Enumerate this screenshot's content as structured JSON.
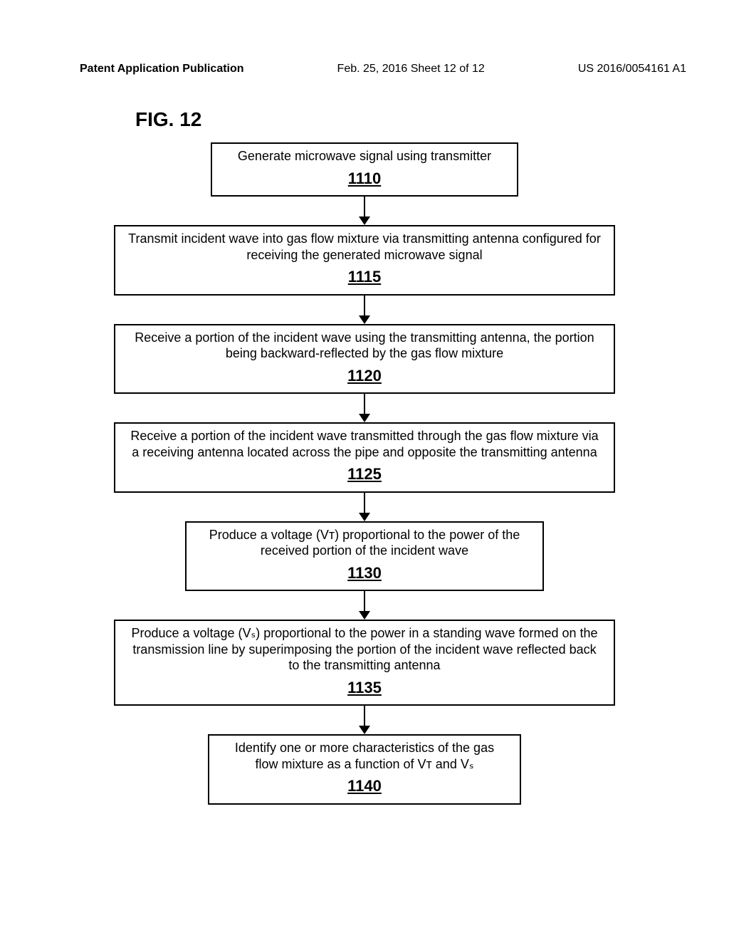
{
  "header": {
    "left": "Patent Application Publication",
    "mid": "Feb. 25, 2016  Sheet 12 of 12",
    "right": "US 2016/0054161 A1"
  },
  "figure_label": "FIG. 12",
  "flowchart": {
    "type": "flowchart",
    "background_color": "#ffffff",
    "box_border_color": "#000000",
    "arrow_color": "#000000",
    "font_family": "Arial",
    "text_fontsize": 18,
    "ref_fontsize": 22,
    "steps": [
      {
        "text": "Generate microwave signal using transmitter",
        "ref": "1110",
        "width": "s"
      },
      {
        "text": "Transmit incident wave into gas flow mixture via transmitting antenna configured for receiving the generated microwave signal",
        "ref": "1115",
        "width": "l"
      },
      {
        "text": "Receive a portion of the incident wave using the transmitting antenna, the portion being backward-reflected by the gas flow mixture",
        "ref": "1120",
        "width": "l"
      },
      {
        "text": "Receive a portion of the incident wave transmitted through the gas flow mixture via a receiving antenna located across the pipe and opposite the transmitting antenna",
        "ref": "1125",
        "width": "l"
      },
      {
        "text": "Produce a voltage (Vᴛ) proportional to the power of the received portion of the incident wave",
        "ref": "1130",
        "width": "m"
      },
      {
        "text": "Produce a voltage (Vₛ) proportional to the power in a standing wave formed on the transmission line by superimposing the portion of the incident wave reflected back to the transmitting antenna",
        "ref": "1135",
        "width": "l"
      },
      {
        "text": "Identify one or more characteristics of the gas flow mixture as a function of Vᴛ and Vₛ",
        "ref": "1140",
        "width": "n"
      }
    ]
  }
}
